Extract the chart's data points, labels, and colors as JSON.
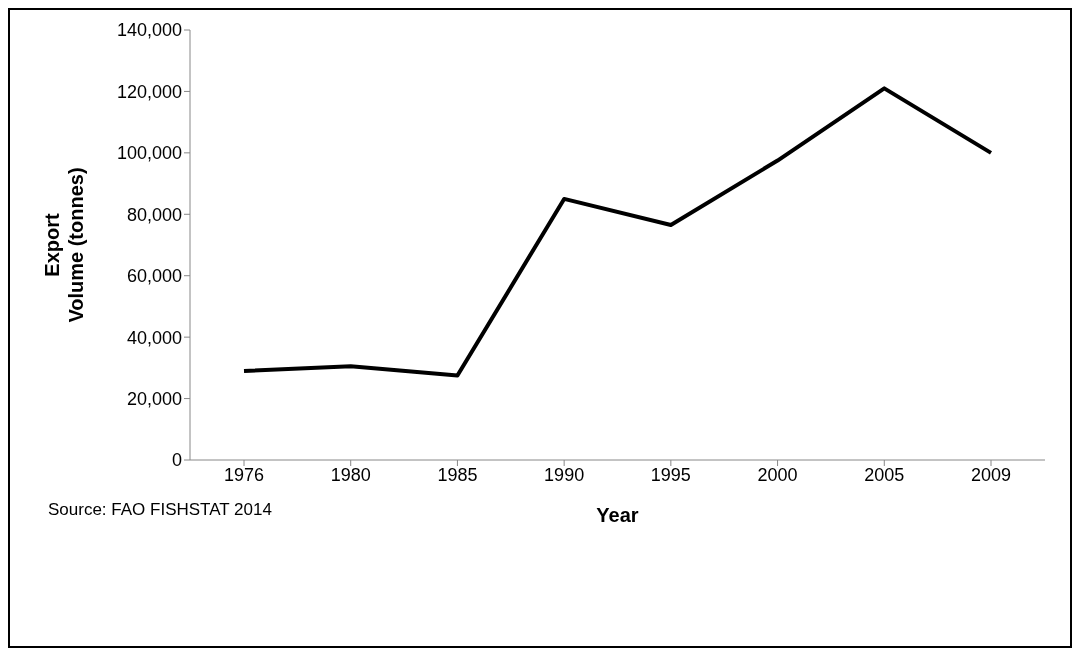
{
  "chart_data": {
    "type": "line",
    "xlabel": "Year",
    "ylabel": "Export\nVolume (tonnes)",
    "categories": [
      "1976",
      "1980",
      "1985",
      "1990",
      "1995",
      "2000",
      "2005",
      "2009"
    ],
    "series": [
      {
        "color": "#000000",
        "values": [
          29000,
          30500,
          27500,
          85000,
          76500,
          97500,
          121000,
          100000
        ]
      }
    ],
    "ylim": [
      0,
      140000
    ],
    "yticks": [
      0,
      {
        "value": 20000,
        "label": "20,000"
      },
      {
        "value": 40000,
        "label": "40,000"
      },
      {
        "value": 60000,
        "label": "60,000"
      },
      {
        "value": 80000,
        "label": "80,000"
      },
      {
        "value": 100000,
        "label": "100,000"
      },
      {
        "value": 120000,
        "label": "120,000"
      },
      {
        "value": 140000,
        "label": "140,000"
      }
    ],
    "grid": false,
    "legend": false,
    "marker": "none",
    "line_style": "solid",
    "annotations": [
      "Source: FAO FISHSTAT 2014"
    ]
  }
}
